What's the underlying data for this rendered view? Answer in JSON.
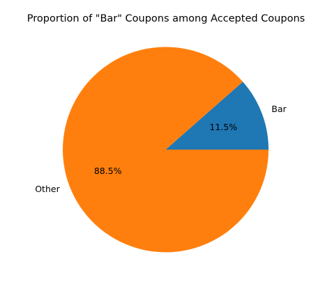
{
  "chart_data": {
    "type": "pie",
    "title": "Proportion of \"Bar\" Coupons among Accepted Coupons",
    "slices": [
      {
        "label": "Bar",
        "value": 11.5,
        "percent_label": "11.5%",
        "color": "#1f77b4"
      },
      {
        "label": "Other",
        "value": 88.5,
        "percent_label": "88.5%",
        "color": "#ff7f0e"
      }
    ],
    "start_angle_deg": 0,
    "direction": "counterclockwise"
  }
}
